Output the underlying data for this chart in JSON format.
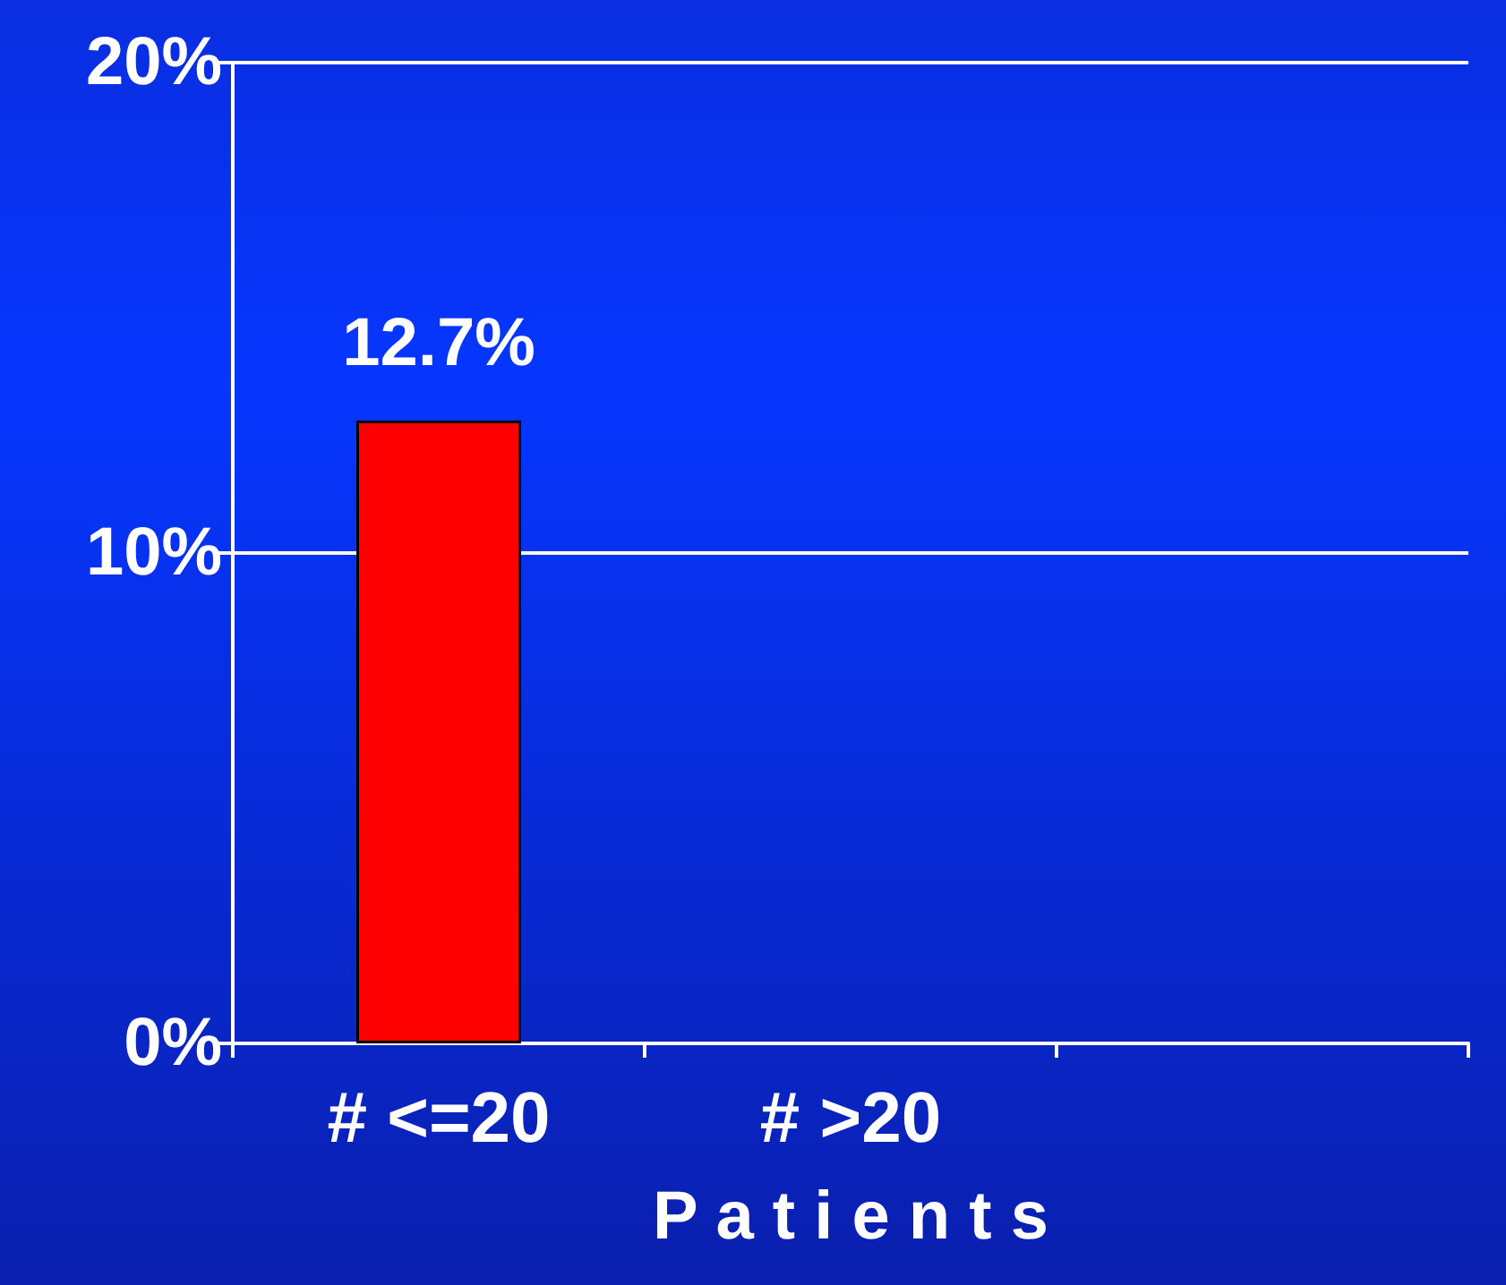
{
  "chart_data": {
    "type": "bar",
    "xlabel": "P a t i e n t s",
    "categories": [
      "# <=20",
      "# >20",
      null
    ],
    "values": [
      12.7,
      null,
      null
    ],
    "color": "#ff0000",
    "value_labels": [
      "12.7%",
      null,
      null
    ],
    "ylim": [
      0,
      20
    ],
    "yticks": [
      {
        "value": 0,
        "label": "0%"
      },
      {
        "value": 10,
        "label": "10%"
      },
      {
        "value": 20,
        "label": "20%"
      }
    ],
    "grid": "y"
  }
}
